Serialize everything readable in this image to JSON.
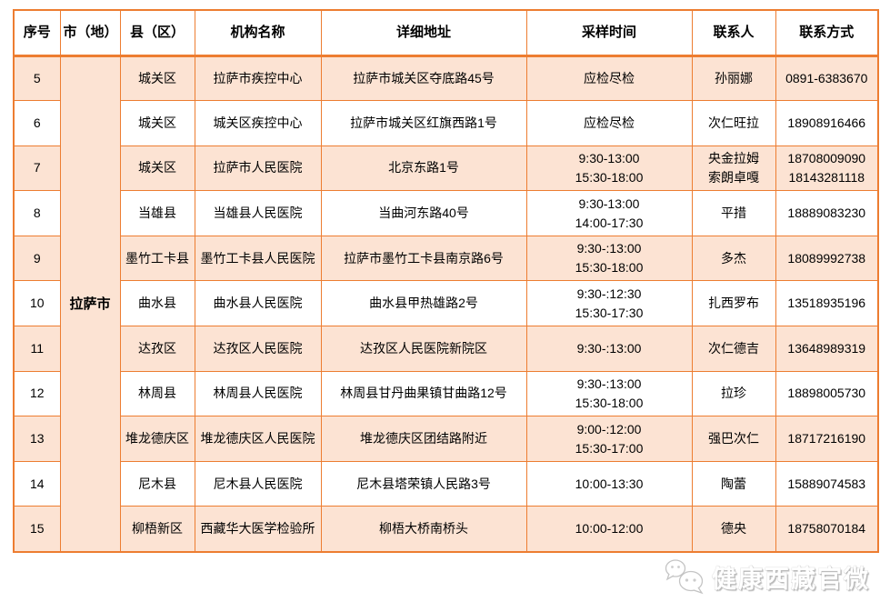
{
  "table": {
    "headers": [
      "序号",
      "市（地）",
      "县（区）",
      "机构名称",
      "详细地址",
      "采样时间",
      "联系人",
      "联系方式"
    ],
    "city": "拉萨市",
    "rows": [
      {
        "no": "5",
        "county": "城关区",
        "org": "拉萨市疾控中心",
        "address": "拉萨市城关区夺底路45号",
        "time": [
          "应检尽检"
        ],
        "contact": [
          "孙丽娜"
        ],
        "phone": [
          "0891-6383670"
        ]
      },
      {
        "no": "6",
        "county": "城关区",
        "org": "城关区疾控中心",
        "address": "拉萨市城关区红旗西路1号",
        "time": [
          "应检尽检"
        ],
        "contact": [
          "次仁旺拉"
        ],
        "phone": [
          "18908916466"
        ]
      },
      {
        "no": "7",
        "county": "城关区",
        "org": "拉萨市人民医院",
        "address": "北京东路1号",
        "time": [
          "9:30-13:00",
          "15:30-18:00"
        ],
        "contact": [
          "央金拉姆",
          "索朗卓嘎"
        ],
        "phone": [
          "18708009090",
          "18143281118"
        ]
      },
      {
        "no": "8",
        "county": "当雄县",
        "org": "当雄县人民医院",
        "address": "当曲河东路40号",
        "time": [
          "9:30-13:00",
          "14:00-17:30"
        ],
        "contact": [
          "平措"
        ],
        "phone": [
          "18889083230"
        ]
      },
      {
        "no": "9",
        "county": "墨竹工卡县",
        "org": "墨竹工卡县人民医院",
        "address": "拉萨市墨竹工卡县南京路6号",
        "time": [
          "9:30-:13:00",
          "15:30-18:00"
        ],
        "contact": [
          "多杰"
        ],
        "phone": [
          "18089992738"
        ]
      },
      {
        "no": "10",
        "county": "曲水县",
        "org": "曲水县人民医院",
        "address": "曲水县甲热雄路2号",
        "time": [
          "9:30-:12:30",
          "15:30-17:30"
        ],
        "contact": [
          "扎西罗布"
        ],
        "phone": [
          "13518935196"
        ]
      },
      {
        "no": "11",
        "county": "达孜区",
        "org": "达孜区人民医院",
        "address": "达孜区人民医院新院区",
        "time": [
          "9:30-:13:00"
        ],
        "contact": [
          "次仁德吉"
        ],
        "phone": [
          "13648989319"
        ]
      },
      {
        "no": "12",
        "county": "林周县",
        "org": "林周县人民医院",
        "address": "林周县甘丹曲果镇甘曲路12号",
        "time": [
          "9:30-:13:00",
          "15:30-18:00"
        ],
        "contact": [
          "拉珍"
        ],
        "phone": [
          "18898005730"
        ]
      },
      {
        "no": "13",
        "county": "堆龙德庆区",
        "org": "堆龙德庆区人民医院",
        "address": "堆龙德庆区团结路附近",
        "time": [
          "9:00-:12:00",
          "15:30-17:00"
        ],
        "contact": [
          "强巴次仁"
        ],
        "phone": [
          "18717216190"
        ]
      },
      {
        "no": "14",
        "county": "尼木县",
        "org": "尼木县人民医院",
        "address": "尼木县塔荣镇人民路3号",
        "time": [
          "10:00-13:30"
        ],
        "contact": [
          "陶蕾"
        ],
        "phone": [
          "15889074583"
        ]
      },
      {
        "no": "15",
        "county": "柳梧新区",
        "org": "西藏华大医学检验所",
        "address": "柳梧大桥南桥头",
        "time": [
          "10:00-12:00"
        ],
        "contact": [
          "德央"
        ],
        "phone": [
          "18758070184"
        ]
      }
    ]
  },
  "footer": {
    "watermark": "健康西藏官微"
  },
  "colors": {
    "border_orange": "#ED7D31",
    "row_shade": "#FCE3D3",
    "text": "#000000",
    "watermark_text": "#ffffff"
  }
}
